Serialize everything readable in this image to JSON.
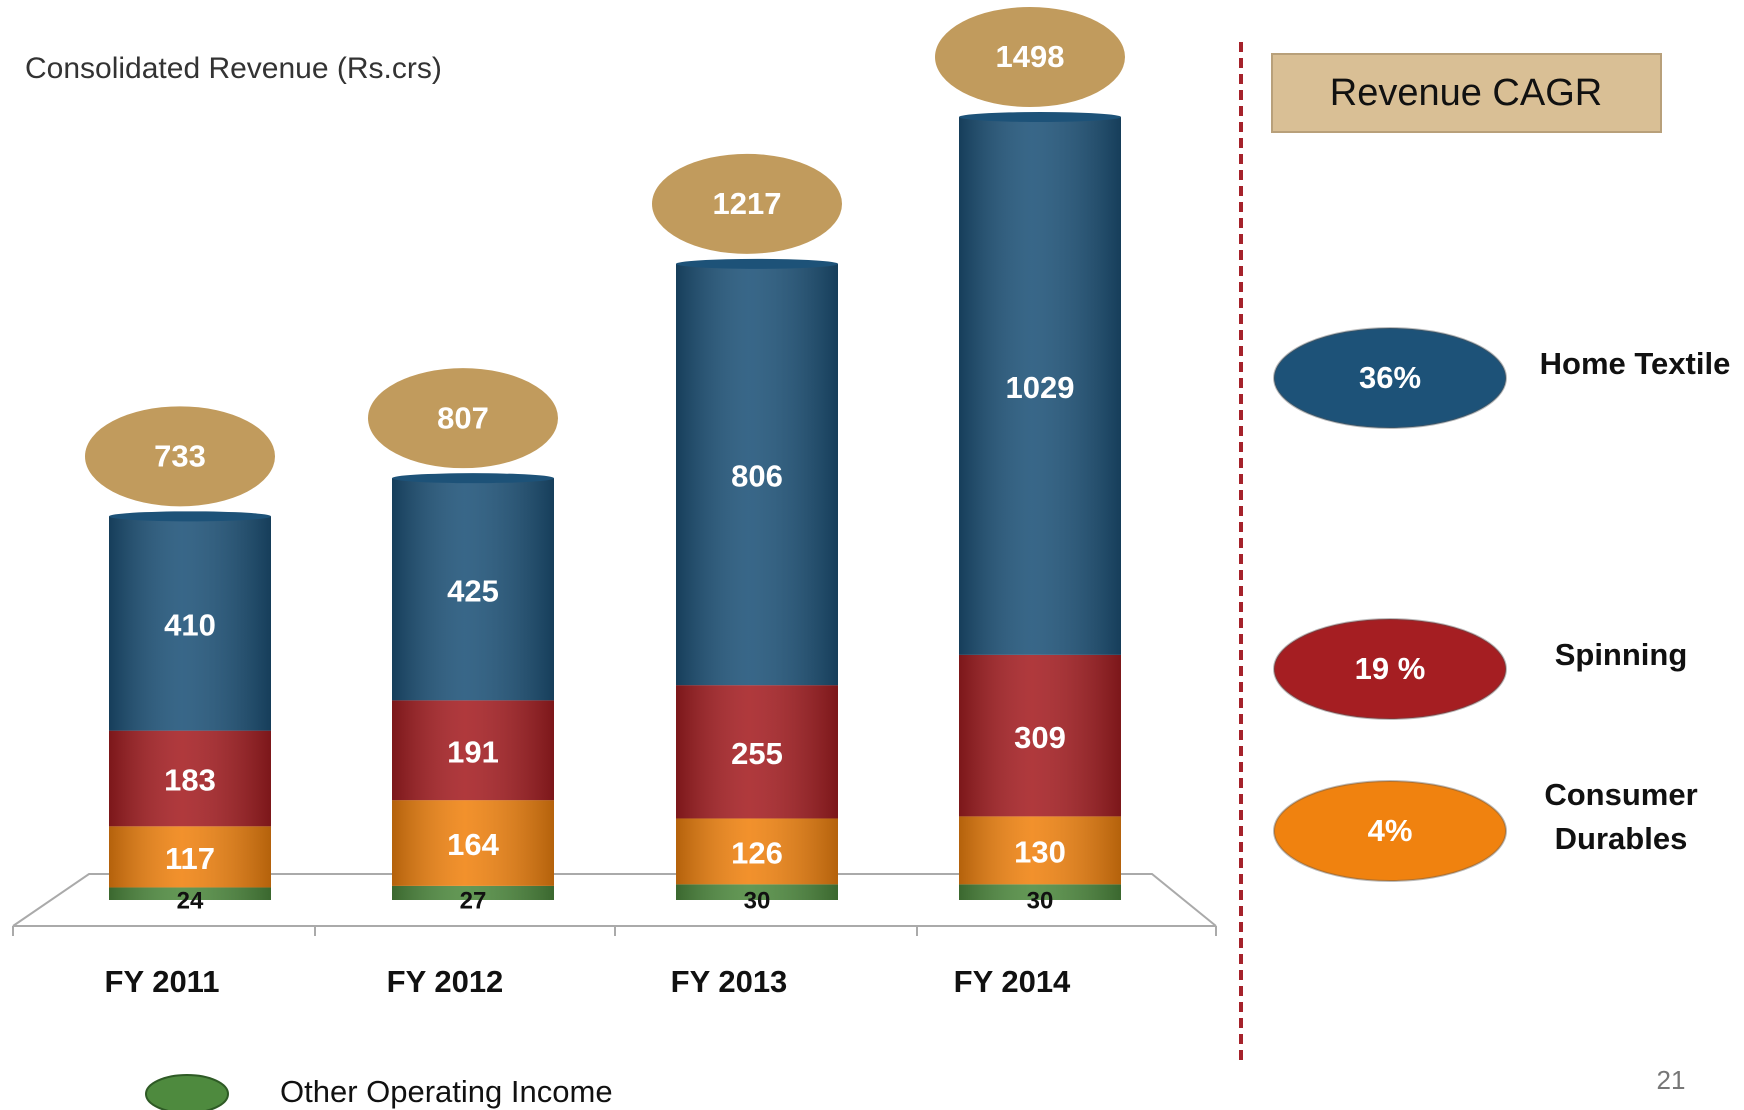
{
  "chart_data": {
    "type": "stacked-bar",
    "title": "Consolidated Revenue (Rs.crs)",
    "categories": [
      "FY 2011",
      "FY 2012",
      "FY 2013",
      "FY 2014"
    ],
    "series": [
      {
        "name": "Other Operating Income",
        "color": "#4e8a3e",
        "values": [
          24,
          27,
          30,
          30
        ]
      },
      {
        "name": "Consumer Durables",
        "color": "#f0820f",
        "values": [
          117,
          164,
          126,
          130
        ]
      },
      {
        "name": "Spinning",
        "color": "#a51e22",
        "values": [
          183,
          191,
          255,
          309
        ]
      },
      {
        "name": "Home Textile",
        "color": "#1d5278",
        "values": [
          410,
          425,
          806,
          1029
        ]
      }
    ],
    "totals": [
      733,
      807,
      1217,
      1498
    ],
    "totals_color": "#c19b5d",
    "cagr": {
      "title": "Revenue CAGR",
      "labels": [
        "36%",
        "19 %",
        "4%"
      ]
    },
    "page_number": "21"
  }
}
